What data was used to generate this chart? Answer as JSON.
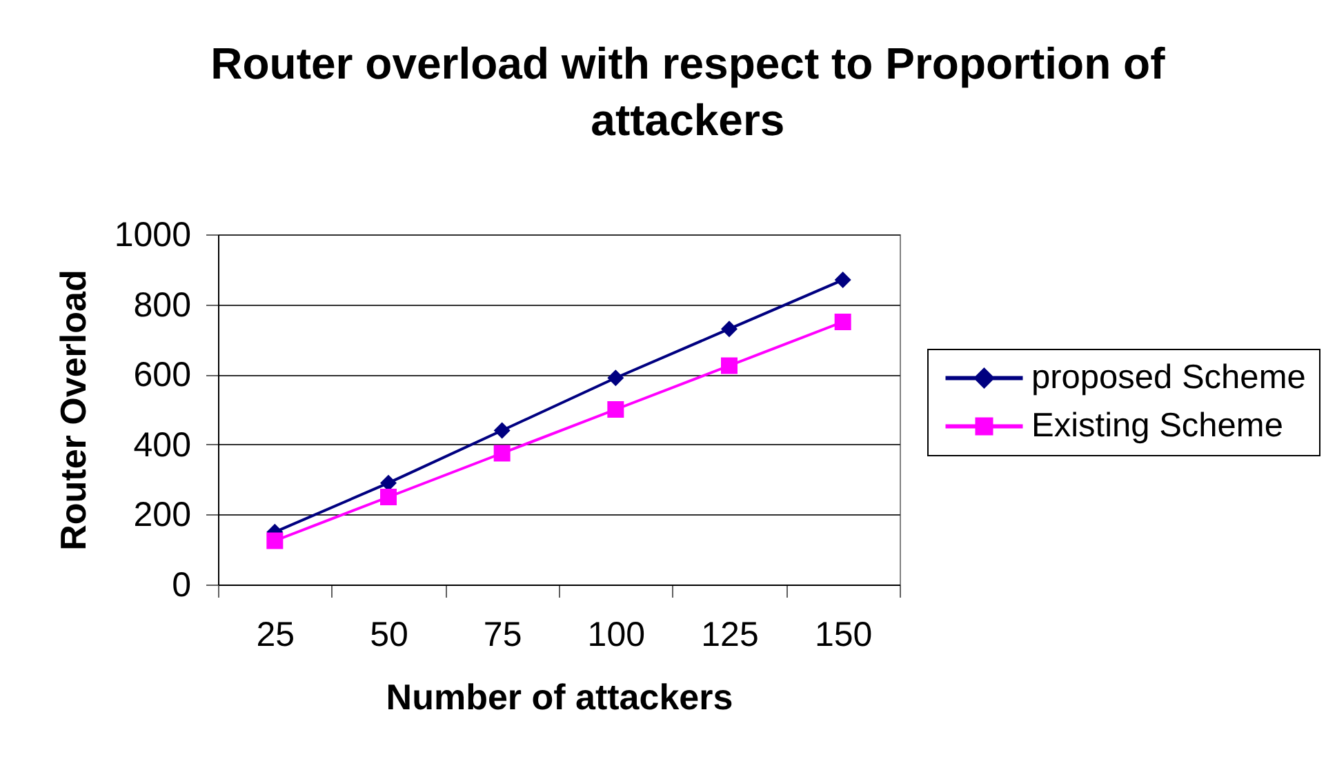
{
  "chart_data": {
    "type": "line",
    "title": "Router overload with respect to Proportion of attackers",
    "xlabel": "Number of attackers",
    "ylabel": "Router Overload",
    "categories": [
      "25",
      "50",
      "75",
      "100",
      "125",
      "150"
    ],
    "series": [
      {
        "name": "proposed Scheme",
        "color": "#000080",
        "marker": "diamond",
        "values": [
          150,
          290,
          440,
          590,
          730,
          870
        ]
      },
      {
        "name": "Existing Scheme",
        "color": "#ff00ff",
        "marker": "square",
        "values": [
          125,
          250,
          375,
          500,
          625,
          750
        ]
      }
    ],
    "ylim": [
      0,
      1000
    ],
    "yticks": [
      0,
      200,
      400,
      600,
      800,
      1000
    ],
    "grid": "y",
    "legend": "right",
    "line_style": "solid"
  }
}
